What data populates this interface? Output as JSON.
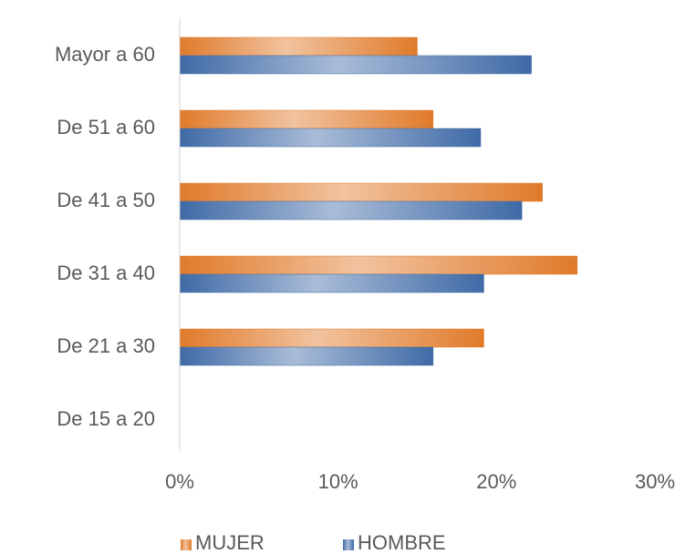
{
  "chart_data": {
    "type": "barh",
    "categories": [
      "Mayor a 60",
      "De 51 a 60",
      "De 41 a 50",
      "De 31 a 40",
      "De 21 a 30",
      "De 15 a 20"
    ],
    "series": [
      {
        "name": "MUJER",
        "color": "#e07a2a",
        "values": [
          15.0,
          16.0,
          22.9,
          25.1,
          19.2,
          0
        ]
      },
      {
        "name": "HOMBRE",
        "color": "#3f6aa6",
        "values": [
          22.2,
          19.0,
          21.6,
          19.2,
          16.0,
          0
        ]
      }
    ],
    "xlim": [
      0,
      30
    ],
    "xticks": [
      {
        "value": 0,
        "label": "0%"
      },
      {
        "value": 10,
        "label": "10%"
      },
      {
        "value": 20,
        "label": "20%"
      },
      {
        "value": 30,
        "label": "30%"
      }
    ],
    "legend": "bottom"
  }
}
